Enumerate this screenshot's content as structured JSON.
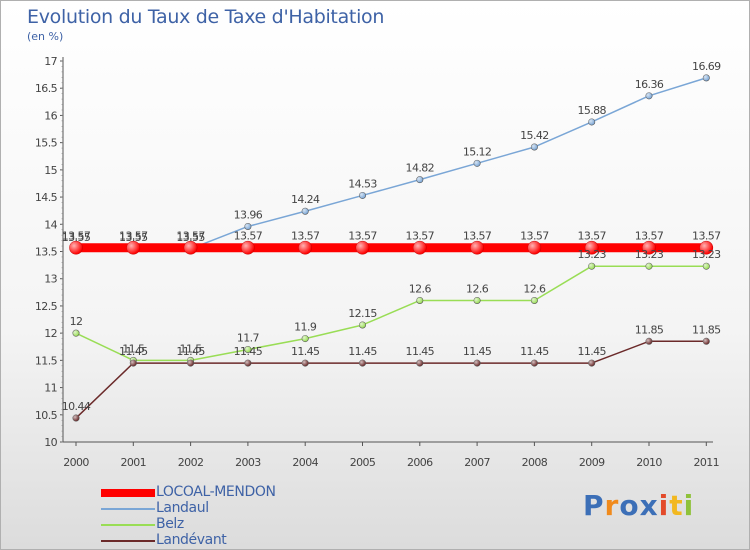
{
  "chart_data": {
    "type": "line",
    "title": "Evolution du Taux de Taxe d'Habitation",
    "subtitle": "(en %)",
    "x": [
      "2000",
      "2001",
      "2002",
      "2003",
      "2004",
      "2005",
      "2006",
      "2007",
      "2008",
      "2009",
      "2010",
      "2011"
    ],
    "ylim": [
      10,
      17
    ],
    "yticks": [
      "10",
      "10.5",
      "11",
      "11.5",
      "12",
      "12.5",
      "13",
      "13.5",
      "14",
      "14.5",
      "15",
      "15.5",
      "16",
      "16.5",
      "17"
    ],
    "grid": false,
    "legend_position": "bottom-left",
    "series": [
      {
        "name": "LOCOAL-MENDON",
        "color": "#ff0000",
        "values": [
          13.57,
          13.57,
          13.57,
          13.57,
          13.57,
          13.57,
          13.57,
          13.57,
          13.57,
          13.57,
          13.57,
          13.57
        ],
        "labels": [
          "13.57",
          "13.57",
          "13.57",
          "13.57",
          "13.57",
          "13.57",
          "13.57",
          "13.57",
          "13.57",
          "13.57",
          "13.57",
          "13.57"
        ]
      },
      {
        "name": "Landaul",
        "color": "#7aa6d6",
        "values": [
          13.55,
          13.55,
          13.55,
          13.96,
          14.24,
          14.53,
          14.82,
          15.12,
          15.42,
          15.88,
          16.36,
          16.69
        ],
        "labels": [
          "13.55",
          "13.55",
          "13.55",
          "13.96",
          "14.24",
          "14.53",
          "14.82",
          "15.12",
          "15.42",
          "15.88",
          "16.36",
          "16.69"
        ]
      },
      {
        "name": "Belz",
        "color": "#99dd55",
        "values": [
          12,
          11.5,
          11.5,
          11.7,
          11.9,
          12.15,
          12.6,
          12.6,
          12.6,
          13.23,
          13.23,
          13.23
        ],
        "labels": [
          "12",
          "11.5",
          "11.5",
          "11.7",
          "11.9",
          "12.15",
          "12.6",
          "12.6",
          "12.6",
          "13.23",
          "13.23",
          "13.23"
        ]
      },
      {
        "name": "Landévant",
        "color": "#6b2a2a",
        "values": [
          10.44,
          11.45,
          11.45,
          11.45,
          11.45,
          11.45,
          11.45,
          11.45,
          11.45,
          11.45,
          11.85,
          11.85
        ],
        "labels": [
          "10.44",
          "11.45",
          "11.45",
          "11.45",
          "11.45",
          "11.45",
          "11.45",
          "11.45",
          "11.45",
          "11.45",
          "11.85",
          "11.85"
        ]
      }
    ]
  },
  "legend": {
    "items": [
      "LOCOAL-MENDON",
      "Landaul",
      "Belz",
      "Landévant"
    ]
  },
  "logo": {
    "letters": [
      "P",
      "r",
      "o",
      "x",
      "i",
      "t",
      "i"
    ],
    "colors": [
      "#3c6fb7",
      "#f08a1c",
      "#3c6fb7",
      "#3c6fb7",
      "#e34a2a",
      "#f2b820",
      "#8fc23a"
    ]
  }
}
